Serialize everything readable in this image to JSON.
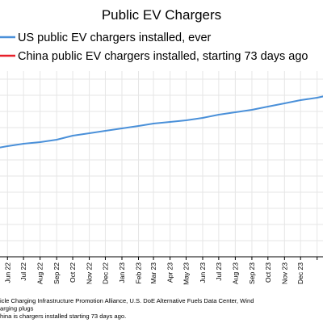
{
  "chart_data": {
    "type": "line",
    "title": "Public EV Chargers",
    "legend_position": "top-left",
    "series": [
      {
        "name": "US public EV chargers installed, ever",
        "color": "#4a90d9",
        "x": [
          "2022-05-15",
          "2022-06-01",
          "2022-07-01",
          "2022-08-01",
          "2022-09-01",
          "2022-10-01",
          "2022-11-01",
          "2022-12-01",
          "2023-01-01",
          "2023-02-01",
          "2023-03-01",
          "2023-04-01",
          "2023-05-01",
          "2023-06-01",
          "2023-07-01",
          "2023-08-01",
          "2023-09-01",
          "2023-10-01",
          "2023-11-01",
          "2023-12-01",
          "2024-01-01",
          "2024-01-15"
        ],
        "y": [
          135,
          137,
          140,
          142,
          145,
          150,
          153,
          156,
          159,
          162,
          165,
          167,
          169,
          172,
          176,
          179,
          182,
          186,
          190,
          194,
          197,
          199
        ]
      },
      {
        "name": "China public EV chargers installed, starting 73 days ago",
        "color": "#e8202a",
        "x": [],
        "y": []
      }
    ],
    "x_tick_labels": [
      "Jun 22",
      "Jul 22",
      "Aug 22",
      "Sep 22",
      "Oct 22",
      "Nov 22",
      "Dec 22",
      "Jan 23",
      "Feb 23",
      "Mar 23",
      "Apr 23",
      "May 23",
      "Jun 23",
      "Jul 23",
      "Aug 23",
      "Sep 23",
      "Oct 23",
      "Nov 23",
      "Dec 23"
    ],
    "xlim": [
      "2022-05-15",
      "2024-01-15"
    ],
    "ylim": [
      0,
      230
    ],
    "grid": true
  },
  "footnotes": [
    "icle Charging Infrastructure Promotion Alliance, U.S. DoE Alternative Fuels Data Center, Wind",
    "arging plugs",
    "hina is chargers installed starting 73 days ago."
  ]
}
